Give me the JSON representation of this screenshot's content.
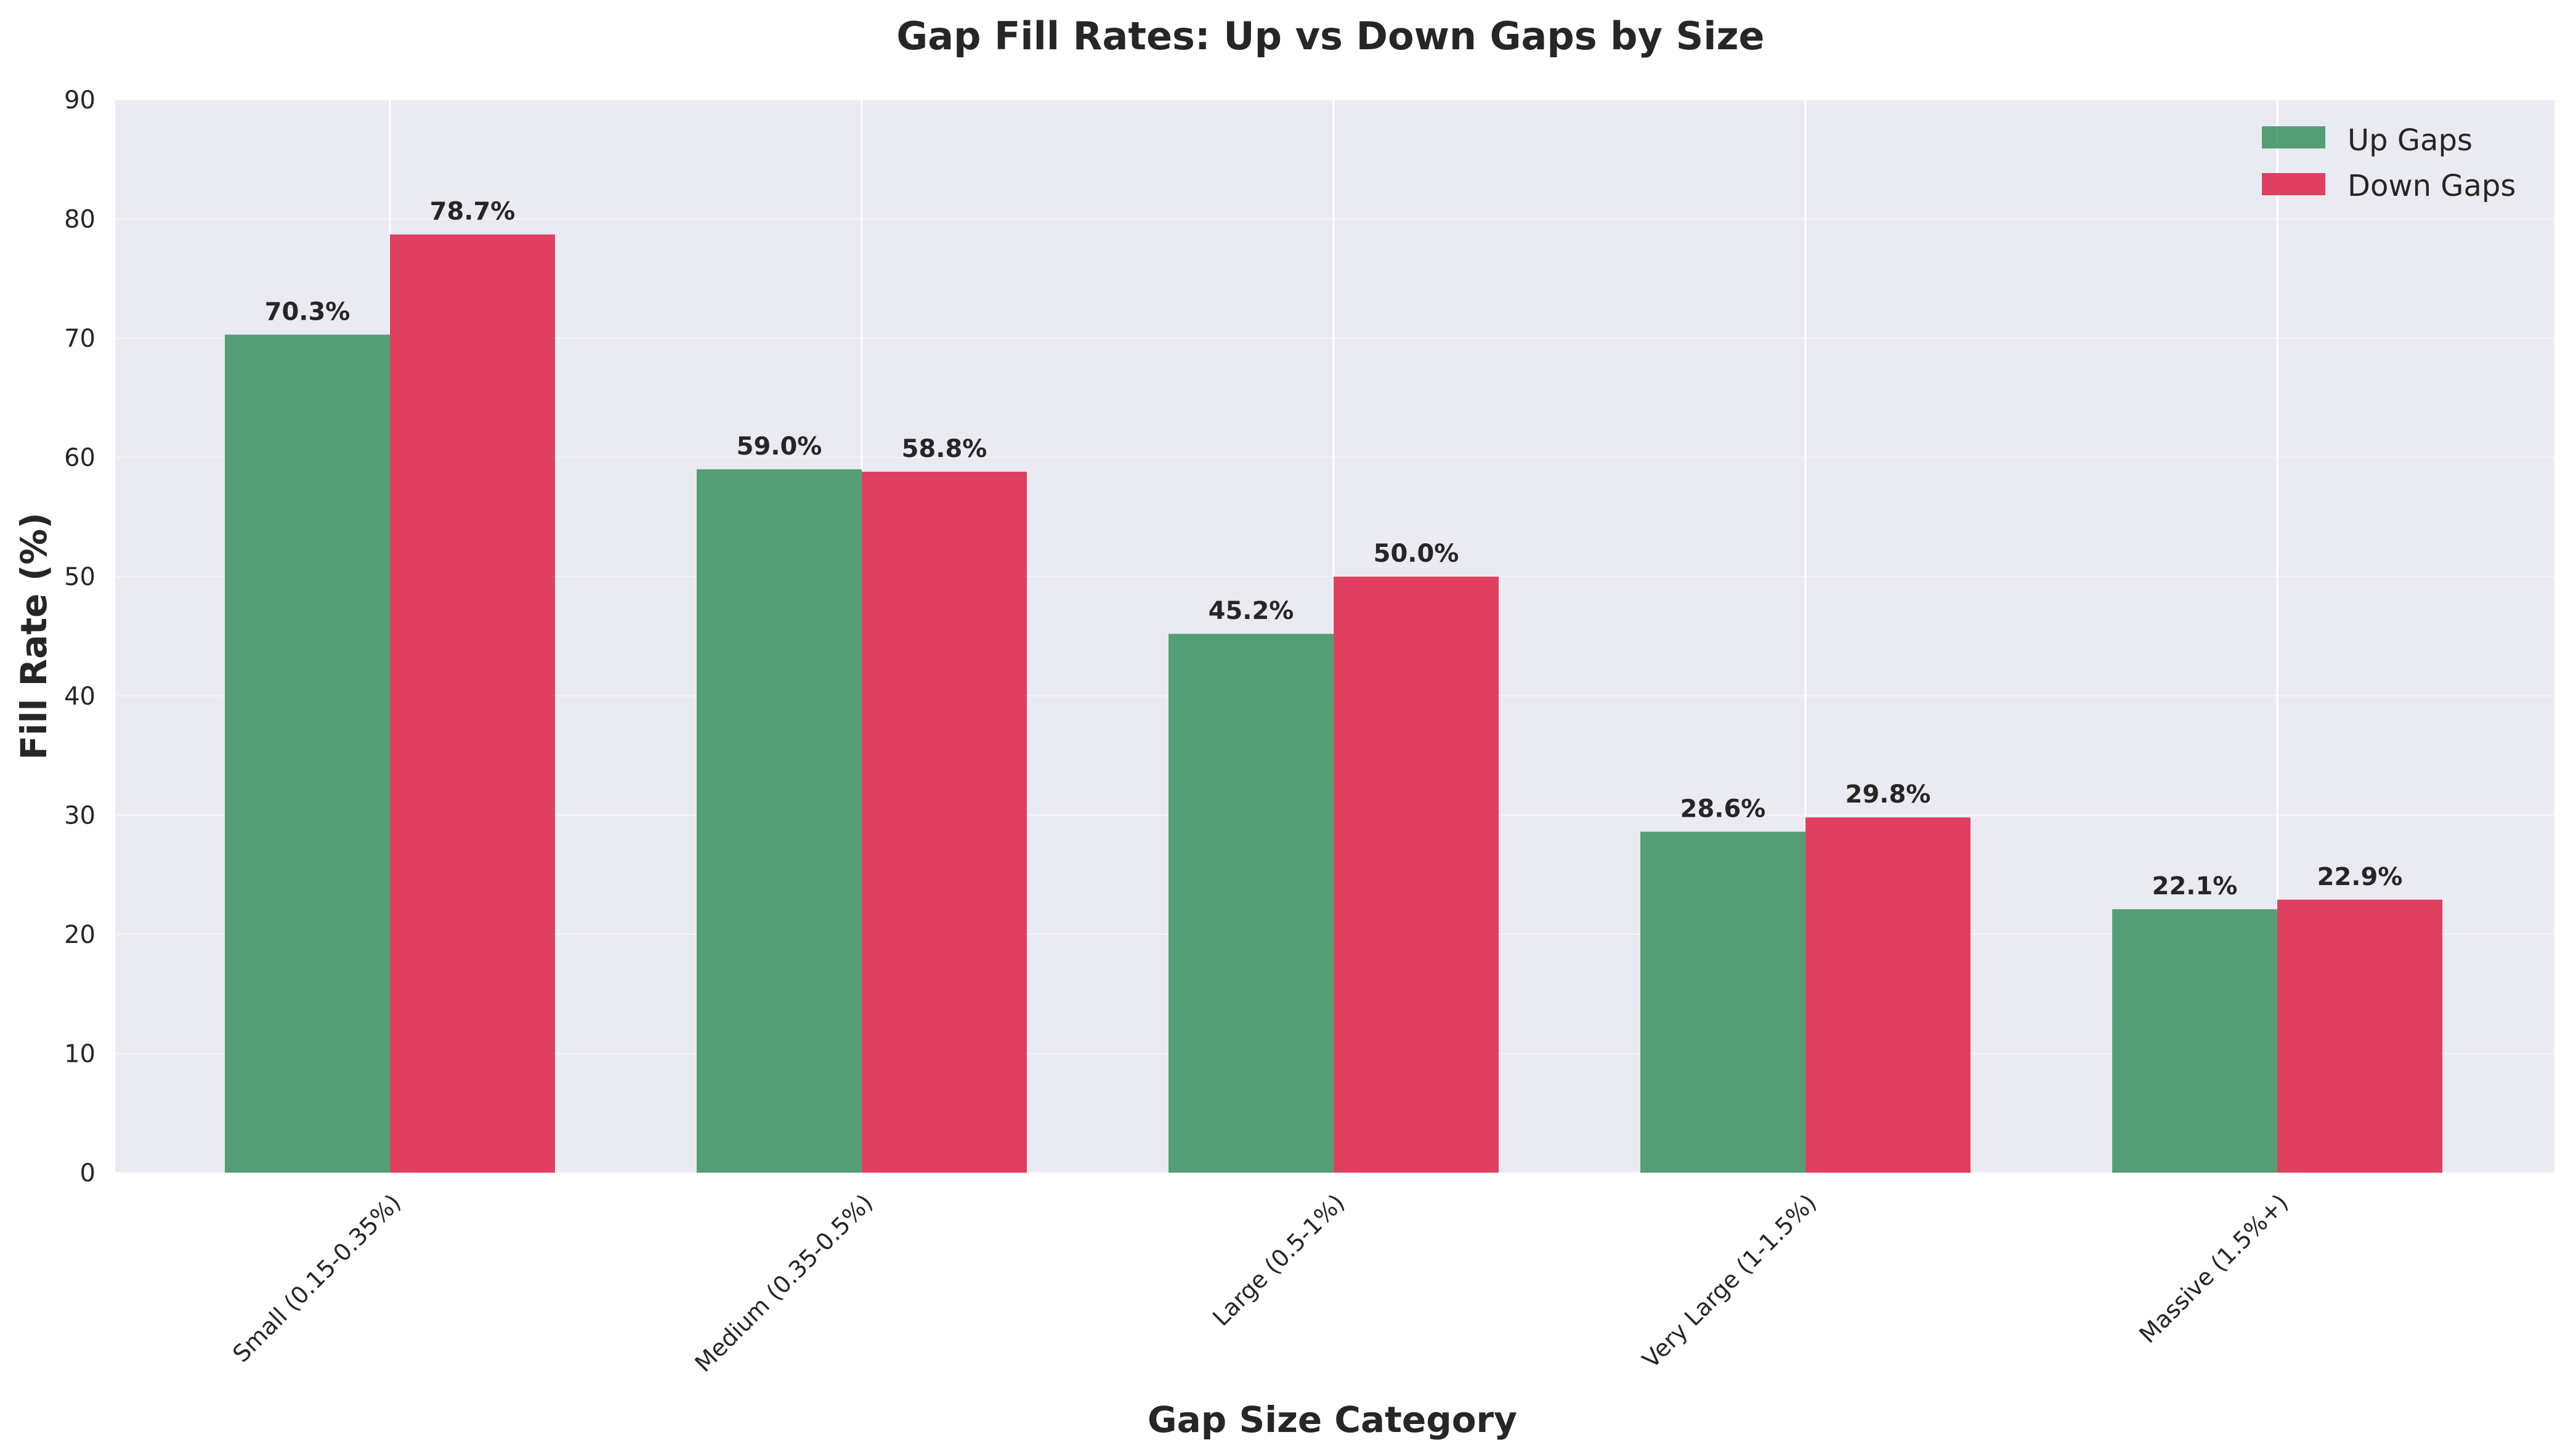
{
  "chart_data": {
    "type": "bar",
    "title": "Gap Fill Rates: Up vs Down Gaps by Size",
    "xlabel": "Gap Size Category",
    "ylabel": "Fill Rate (%)",
    "ylim": [
      0,
      90
    ],
    "yticks": [
      "0",
      "10",
      "20",
      "30",
      "40",
      "50",
      "60",
      "70",
      "80",
      "90"
    ],
    "categories": [
      "Small (0.15-0.35%)",
      "Medium (0.35-0.5%)",
      "Large (0.5-1%)",
      "Very Large (1-1.5%)",
      "Massive (1.5%+)"
    ],
    "series": [
      {
        "name": "Up Gaps",
        "color": "#2e8b57",
        "values": [
          70.3,
          59.0,
          45.2,
          28.6,
          22.1
        ],
        "labels": [
          "70.3%",
          "59.0%",
          "45.2%",
          "28.6%",
          "22.1%"
        ]
      },
      {
        "name": "Down Gaps",
        "color": "#dc143c",
        "values": [
          78.7,
          58.8,
          50.0,
          29.8,
          22.9
        ],
        "labels": [
          "78.7%",
          "58.8%",
          "50.0%",
          "29.8%",
          "22.9%"
        ]
      }
    ],
    "grid": true,
    "legend_position": "top-right",
    "background_color": "#eaeaf2"
  }
}
